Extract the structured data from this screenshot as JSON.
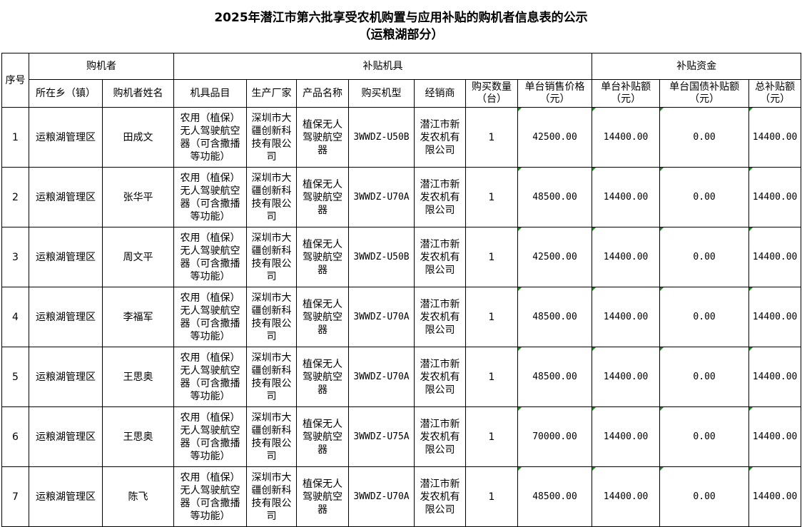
{
  "title_line1": "2025年潜江市第六批享受农机购置与应用补贴的购机者信息表的公示",
  "title_line2": "（运粮湖部分）",
  "headers": {
    "seq": "序号",
    "group_buyer": "购机者",
    "group_machine": "补贴机具",
    "group_funds": "补贴资金",
    "columns": [
      "所在乡（镇）",
      "购机者姓名",
      "机具品目",
      "生产厂家",
      "产品名称",
      "购买机型",
      "经销商",
      "购买数量（台）",
      "单台销售价格（元）",
      "单台补贴额（元）",
      "单台国债补贴额（元）",
      "总补贴额（元）"
    ]
  },
  "rows": [
    {
      "seq": "1",
      "town": "运粮湖管理区",
      "name": "田成文",
      "category": "农用（植保）无人驾驶航空器（可含撒播等功能）",
      "maker": "深圳市大疆创新科技有限公司",
      "product": "植保无人驾驶航空器",
      "model": "3WWDZ-U50B",
      "dealer": "潜江市新发农机有限公司",
      "qty": "1",
      "price": "42500.00",
      "subsidy": "14400.00",
      "bond": "0.00",
      "total": "14400.00"
    },
    {
      "seq": "2",
      "town": "运粮湖管理区",
      "name": "张华平",
      "category": "农用（植保）无人驾驶航空器（可含撒播等功能）",
      "maker": "深圳市大疆创新科技有限公司",
      "product": "植保无人驾驶航空器",
      "model": "3WWDZ-U70A",
      "dealer": "潜江市新发农机有限公司",
      "qty": "1",
      "price": "48500.00",
      "subsidy": "14400.00",
      "bond": "0.00",
      "total": "14400.00"
    },
    {
      "seq": "3",
      "town": "运粮湖管理区",
      "name": "周文平",
      "category": "农用（植保）无人驾驶航空器（可含撒播等功能）",
      "maker": "深圳市大疆创新科技有限公司",
      "product": "植保无人驾驶航空器",
      "model": "3WWDZ-U50B",
      "dealer": "潜江市新发农机有限公司",
      "qty": "1",
      "price": "42500.00",
      "subsidy": "14400.00",
      "bond": "0.00",
      "total": "14400.00"
    },
    {
      "seq": "4",
      "town": "运粮湖管理区",
      "name": "李福军",
      "category": "农用（植保）无人驾驶航空器（可含撒播等功能）",
      "maker": "深圳市大疆创新科技有限公司",
      "product": "植保无人驾驶航空器",
      "model": "3WWDZ-U70A",
      "dealer": "潜江市新发农机有限公司",
      "qty": "1",
      "price": "48500.00",
      "subsidy": "14400.00",
      "bond": "0.00",
      "total": "14400.00"
    },
    {
      "seq": "5",
      "town": "运粮湖管理区",
      "name": "王思奥",
      "category": "农用（植保）无人驾驶航空器（可含撒播等功能）",
      "maker": "深圳市大疆创新科技有限公司",
      "product": "植保无人驾驶航空器",
      "model": "3WWDZ-U70A",
      "dealer": "潜江市新发农机有限公司",
      "qty": "1",
      "price": "48500.00",
      "subsidy": "14400.00",
      "bond": "0.00",
      "total": "14400.00"
    },
    {
      "seq": "6",
      "town": "运粮湖管理区",
      "name": "王思奥",
      "category": "农用（植保）无人驾驶航空器（可含撒播等功能）",
      "maker": "深圳市大疆创新科技有限公司",
      "product": "植保无人驾驶航空器",
      "model": "3WWDZ-U75A",
      "dealer": "潜江市新发农机有限公司",
      "qty": "1",
      "price": "70000.00",
      "subsidy": "14400.00",
      "bond": "0.00",
      "total": "14400.00"
    },
    {
      "seq": "7",
      "town": "运粮湖管理区",
      "name": "陈飞",
      "category": "农用（植保）无人驾驶航空器（可含撒播等功能）",
      "maker": "深圳市大疆创新科技有限公司",
      "product": "植保无人驾驶航空器",
      "model": "3WWDZ-U70A",
      "dealer": "潜江市新发农机有限公司",
      "qty": "1",
      "price": "48500.00",
      "subsidy": "14400.00",
      "bond": "0.00",
      "total": "14400.00"
    }
  ]
}
